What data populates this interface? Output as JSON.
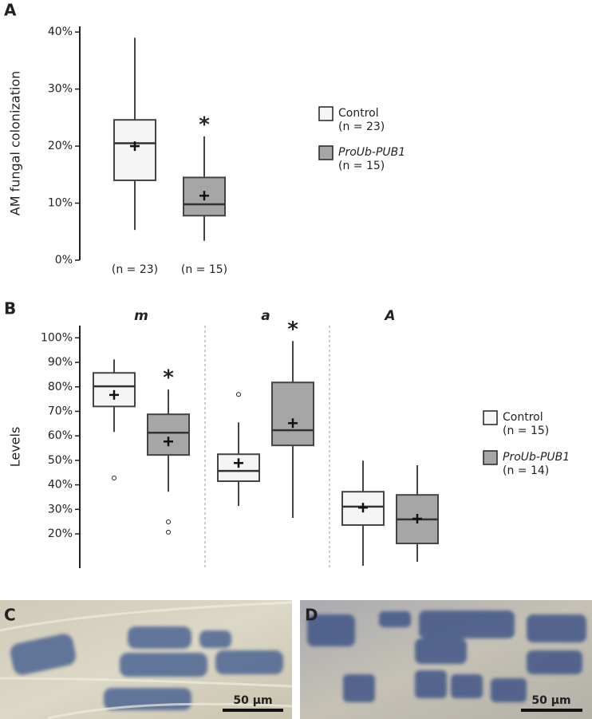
{
  "chart_data": [
    {
      "type": "box",
      "panel_label": "A",
      "ylabel": "AM fungal colonization",
      "ylim": [
        0,
        41
      ],
      "yticks": [
        {
          "value": 0,
          "label": "0%"
        },
        {
          "value": 10,
          "label": "10%"
        },
        {
          "value": 20,
          "label": "20%"
        },
        {
          "value": 30,
          "label": "30%"
        },
        {
          "value": 40,
          "label": "40%"
        }
      ],
      "categories": [
        "(n = 23)",
        "(n = 15)"
      ],
      "series": [
        {
          "name": "Control",
          "n_label": "(n = 23)",
          "color": "#f5f5f5",
          "boxes": [
            {
              "min": 5.3,
              "q1": 14,
              "median": 20.5,
              "q3": 24.6,
              "max": 39,
              "mean": 20
            }
          ]
        },
        {
          "name": "ProUb-PUB1",
          "n_label": "(n = 15)",
          "color": "#a6a6a6",
          "boxes": [
            {
              "min": 3.4,
              "q1": 7.8,
              "median": 9.8,
              "q3": 14.5,
              "max": 21.7,
              "mean": 11.3,
              "annotation": "*"
            }
          ]
        }
      ]
    },
    {
      "type": "box",
      "panel_label": "B",
      "ylabel": "Levels",
      "ylim": [
        6,
        105
      ],
      "yticks": [
        {
          "value": 20,
          "label": "20%"
        },
        {
          "value": 30,
          "label": "30%"
        },
        {
          "value": 40,
          "label": "40%"
        },
        {
          "value": 50,
          "label": "50%"
        },
        {
          "value": 60,
          "label": "60%"
        },
        {
          "value": 70,
          "label": "70%"
        },
        {
          "value": 80,
          "label": "80%"
        },
        {
          "value": 90,
          "label": "90%"
        },
        {
          "value": 100,
          "label": "100%"
        }
      ],
      "groups": [
        "m",
        "a",
        "A"
      ],
      "series": [
        {
          "name": "Control",
          "n_label": "(n = 15)",
          "color": "#f5f5f5",
          "boxes": [
            {
              "min": 61.6,
              "q1": 72,
              "median": 80.2,
              "q3": 85.7,
              "max": 91.2,
              "mean": 76.7,
              "outliers": [
                42.8
              ]
            },
            {
              "min": 31.4,
              "q1": 41.5,
              "median": 45.7,
              "q3": 52.5,
              "max": 65.5,
              "mean": 48.9,
              "outliers": [
                76.9
              ]
            },
            {
              "min": 7,
              "q1": 23.6,
              "median": 31.1,
              "q3": 37.2,
              "max": 49.9,
              "mean": 30.7
            }
          ]
        },
        {
          "name": "ProUb-PUB1",
          "n_label": "(n = 14)",
          "color": "#a6a6a6",
          "boxes": [
            {
              "min": 37.2,
              "q1": 52.2,
              "median": 61.3,
              "q3": 68.8,
              "max": 78.9,
              "mean": 57.7,
              "outliers": [
                24.9,
                20.7
              ],
              "annotation": "*"
            },
            {
              "min": 26.5,
              "q1": 56.1,
              "median": 62.3,
              "q3": 81.8,
              "max": 98.7,
              "mean": 65.2,
              "annotation": "*"
            },
            {
              "min": 8.6,
              "q1": 16.1,
              "median": 25.9,
              "q3": 35.9,
              "max": 48,
              "mean": 26.2
            }
          ]
        }
      ]
    }
  ],
  "micrographs": [
    {
      "panel_label": "C",
      "scale_bar": "50 µm"
    },
    {
      "panel_label": "D",
      "scale_bar": "50 µm"
    }
  ]
}
